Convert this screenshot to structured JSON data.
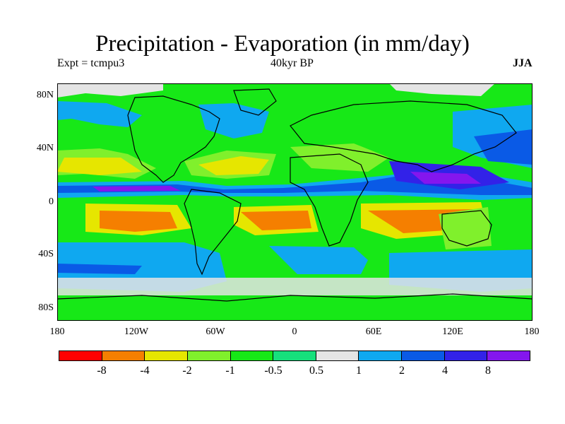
{
  "title": "Precipitation - Evaporation (in mm/day)",
  "subtitle_left": "Expt = tcmpu3",
  "subtitle_center": "40kyr BP",
  "subtitle_right": "JJA",
  "y_ticks": [
    "80N",
    "40N",
    "0",
    "40S",
    "80S"
  ],
  "x_ticks": [
    "180",
    "120W",
    "60W",
    "0",
    "60E",
    "120E",
    "180"
  ],
  "colorbar": {
    "colors": [
      "#ff0000",
      "#f57f00",
      "#e6e600",
      "#80f02c",
      "#17e817",
      "#16e07c",
      "#e4e4e4",
      "#0fa8f0",
      "#0a5ae6",
      "#3222e8",
      "#8416ee"
    ],
    "labels": [
      "-8",
      "-4",
      "-2",
      "-1",
      "-0.5",
      "0.5",
      "1",
      "2",
      "4",
      "8"
    ]
  },
  "colors": {
    "green": "#17e817",
    "aqua": "#16e07c",
    "light_green": "#80f02c",
    "yellow": "#e6e600",
    "orange": "#f57f00",
    "grey": "#e4e4e4",
    "light_blue": "#0fa8f0",
    "blue": "#0a5ae6",
    "indigo": "#3222e8",
    "purple": "#8416ee",
    "coast": "#000000"
  }
}
